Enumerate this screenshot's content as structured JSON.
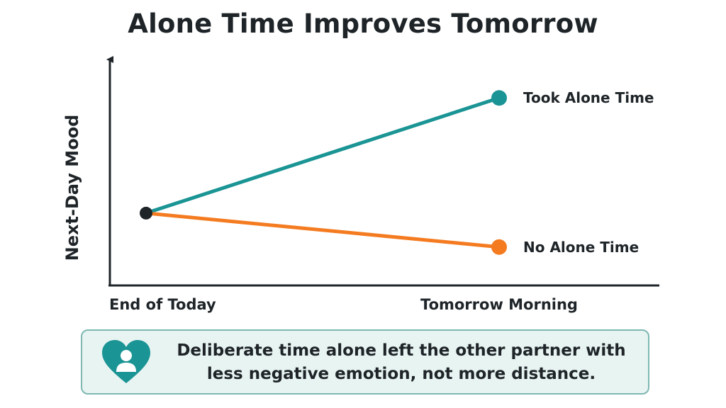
{
  "chart_data": {
    "type": "line",
    "title": "Alone Time Improves Tomorrow",
    "ylabel": "Next-Day Mood",
    "xlabel": "",
    "categories": [
      "End of Today",
      "Tomorrow Morning"
    ],
    "ylim": [
      0,
      10
    ],
    "grid": false,
    "legend": "direct labels at line ends (right)",
    "series": [
      {
        "name": "Took Alone Time",
        "values": [
          3.2,
          8.3
        ],
        "color": "#1a9494"
      },
      {
        "name": "No Alone Time",
        "values": [
          3.2,
          1.7
        ],
        "color": "#f47b20"
      }
    ],
    "start_point_color": "#1e2428",
    "axis_color": "#1e2428"
  },
  "callout": {
    "icon": "heart-person-icon",
    "text": "Deliberate time alone left the other partner with less negative emotion, not more distance.",
    "background": "#e8f4f2",
    "border": "#7fb8b2",
    "icon_color": "#1a9494"
  }
}
